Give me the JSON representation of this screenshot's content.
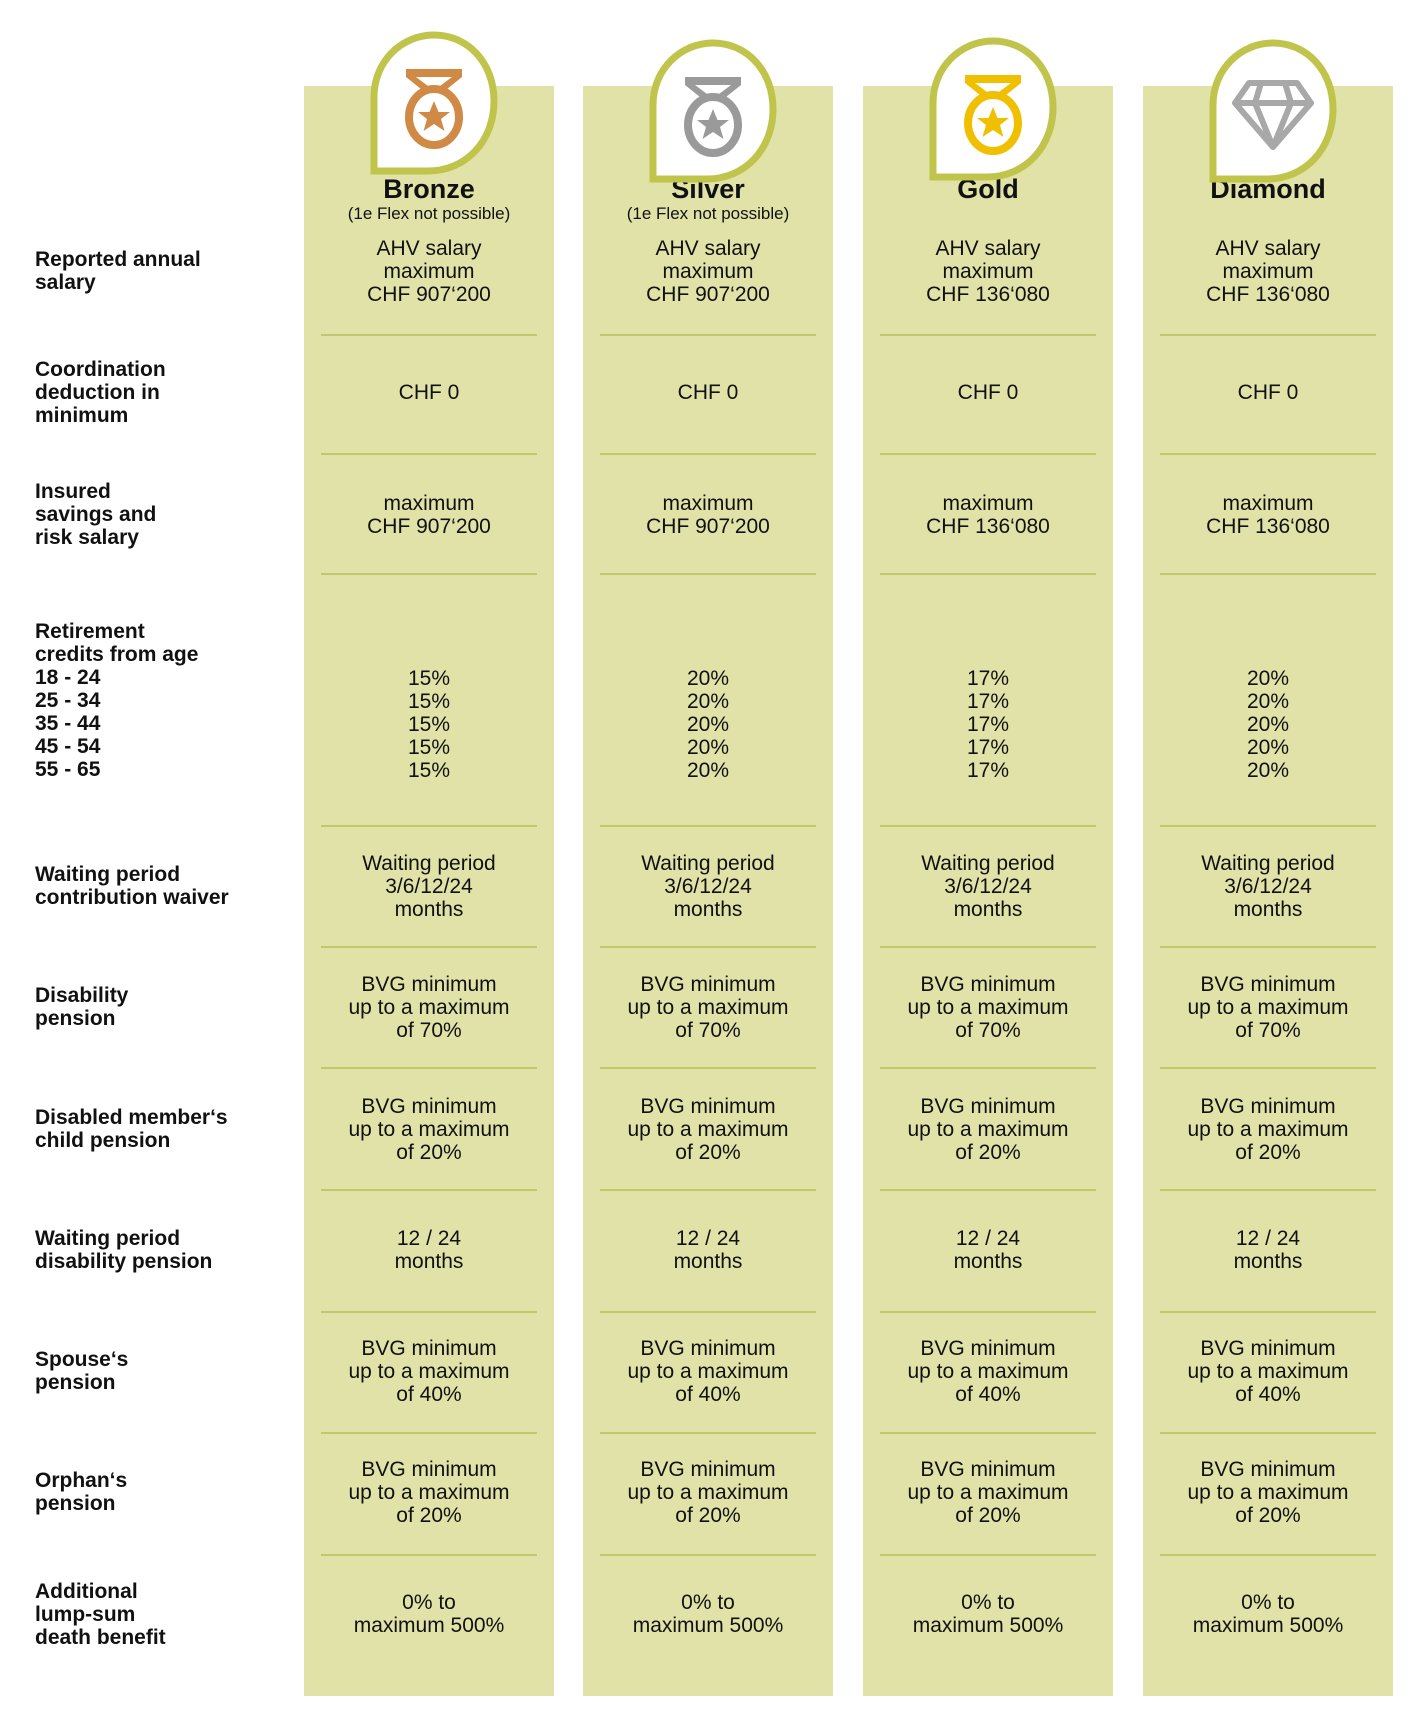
{
  "colors": {
    "column_bg": "#e0e2a8",
    "badge_outline": "#c1c44a",
    "bronze": "#d08a45",
    "silver": "#9a9a9a",
    "gold": "#f0c000",
    "diamond": "#a8a8a8"
  },
  "plans": [
    {
      "name": "Bronze",
      "note": "(1e Flex not possible)",
      "icon": "bronze-medal-icon"
    },
    {
      "name": "Silver",
      "note": "(1e Flex not possible)",
      "icon": "silver-medal-icon"
    },
    {
      "name": "Gold",
      "note": "",
      "icon": "gold-medal-icon"
    },
    {
      "name": "Diamond",
      "note": "",
      "icon": "diamond-icon"
    }
  ],
  "rows": [
    {
      "label": "Reported annual\nsalary",
      "values": [
        "AHV salary\nmaximum\nCHF 907‘200",
        "AHV salary\nmaximum\nCHF 907‘200",
        "AHV salary\nmaximum\nCHF 136‘080",
        "AHV salary\nmaximum\nCHF 136‘080"
      ]
    },
    {
      "label": "Coordination\ndeduction in\nminimum",
      "values": [
        "CHF 0",
        "CHF 0",
        "CHF 0",
        "CHF 0"
      ]
    },
    {
      "label": "Insured\nsavings and\nrisk salary",
      "values": [
        "maximum\nCHF 907‘200",
        "maximum\nCHF 907‘200",
        "maximum\nCHF 136‘080",
        "maximum\nCHF 136‘080"
      ]
    },
    {
      "label": "Retirement\ncredits from age\n18 - 24\n25 - 34\n35 - 44\n45 - 54\n55 - 65",
      "values": [
        "15%\n15%\n15%\n15%\n15%",
        "20%\n20%\n20%\n20%\n20%",
        "17%\n17%\n17%\n17%\n17%",
        "20%\n20%\n20%\n20%\n20%"
      ]
    },
    {
      "label": "Waiting period\ncontribution waiver",
      "values": [
        "Waiting period\n3/6/12/24\nmonths",
        "Waiting period\n3/6/12/24\nmonths",
        "Waiting period\n3/6/12/24\nmonths",
        "Waiting period\n3/6/12/24\nmonths"
      ]
    },
    {
      "label": "Disability\npension",
      "values": [
        "BVG minimum\nup to a maximum\nof 70%",
        "BVG minimum\nup to a maximum\nof 70%",
        "BVG minimum\nup to a maximum\nof 70%",
        "BVG minimum\nup to a maximum\nof 70%"
      ]
    },
    {
      "label": "Disabled member‘s\nchild pension",
      "values": [
        "BVG minimum\nup to a maximum\nof 20%",
        "BVG minimum\nup to a maximum\nof 20%",
        "BVG minimum\nup to a maximum\nof 20%",
        "BVG minimum\nup to a maximum\nof 20%"
      ]
    },
    {
      "label": "Waiting period\ndisability pension",
      "values": [
        "12 / 24\nmonths",
        "12 / 24\nmonths",
        "12 / 24\nmonths",
        "12 / 24\nmonths"
      ]
    },
    {
      "label": "Spouse‘s\npension",
      "values": [
        "BVG minimum\nup to a maximum\nof 40%",
        "BVG minimum\nup to a maximum\nof 40%",
        "BVG minimum\nup to a maximum\nof 40%",
        "BVG minimum\nup to a maximum\nof 40%"
      ]
    },
    {
      "label": "Orphan‘s\npension",
      "values": [
        "BVG minimum\nup to a maximum\nof 20%",
        "BVG minimum\nup to a maximum\nof 20%",
        "BVG minimum\nup to a maximum\nof 20%",
        "BVG minimum\nup to a maximum\nof 20%"
      ]
    },
    {
      "label": "Additional\nlump-sum\ndeath benefit",
      "values": [
        "0% to\nmaximum 500%",
        "0% to\nmaximum 500%",
        "0% to\nmaximum 500%",
        "0% to\nmaximum 500%"
      ]
    }
  ]
}
